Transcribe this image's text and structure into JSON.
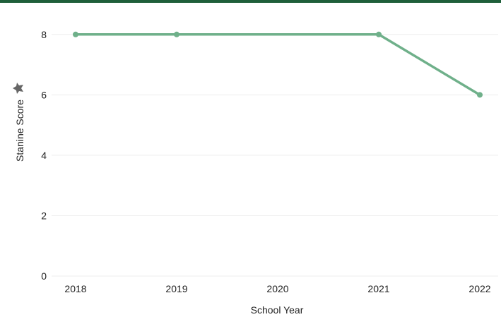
{
  "chart_data": {
    "type": "line",
    "title": "",
    "xlabel": "School Year",
    "ylabel": "Stanine Score",
    "categories": [
      "2018",
      "2019",
      "2020",
      "2021",
      "2022"
    ],
    "x_ticks": [
      "2018",
      "2019",
      "2020",
      "2021",
      "2022"
    ],
    "y_ticks": [
      "0",
      "2",
      "4",
      "6",
      "8"
    ],
    "ylim": [
      0,
      9
    ],
    "grid": true,
    "legend": "none",
    "series": [
      {
        "x": [
          "2018",
          "2019",
          "2021",
          "2022"
        ],
        "values": [
          8,
          8,
          8,
          6
        ],
        "color": "#6fb08a"
      }
    ]
  },
  "colors": {
    "top_bar": "#1f5f3a",
    "line": "#6fb08a",
    "grid": "#eeeeee",
    "text": "#222222"
  },
  "icons": {
    "ylabel_icon": "pin-icon"
  }
}
